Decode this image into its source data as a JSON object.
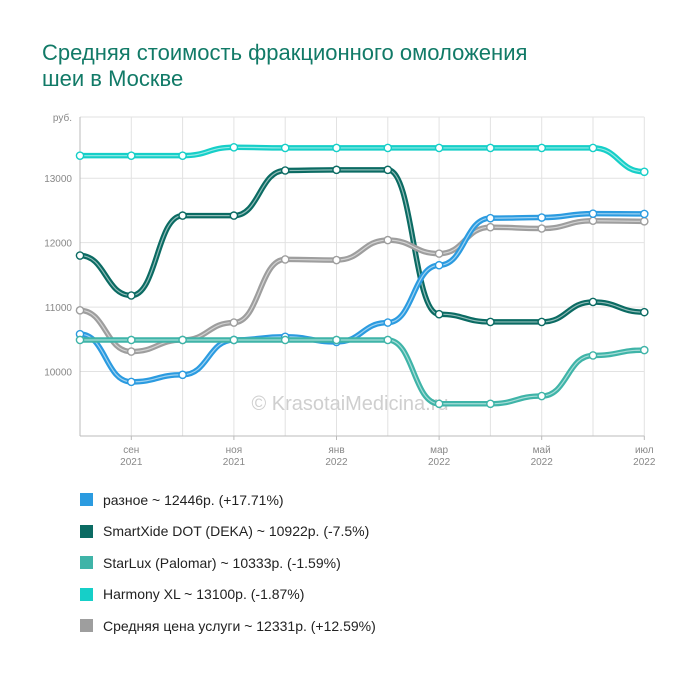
{
  "title_lines": [
    "Средняя стоимость фракционного омоложения",
    "шеи в Москве"
  ],
  "watermark": "© KrasotaiMedicina.ru",
  "colors": {
    "raznoe": "#2b9be0",
    "smartxide": "#0b6b63",
    "starlux": "#3fb4a8",
    "harmony": "#16cfc8",
    "avg": "#9e9e9e"
  },
  "legend": [
    {
      "label": "разное ~ 12446р. (+17.71%)",
      "color_key": "raznoe"
    },
    {
      "label": "SmartXide DOT (DEKA) ~ 10922р. (-7.5%)",
      "color_key": "smartxide"
    },
    {
      "label": "StarLux (Palomar) ~ 10333р. (-1.59%)",
      "color_key": "starlux"
    },
    {
      "label": "Harmony XL ~ 13100р. (-1.87%)",
      "color_key": "harmony"
    },
    {
      "label": "Средняя цена услуги ~ 12331р. (+12.59%)",
      "color_key": "avg"
    }
  ],
  "chart_data": {
    "type": "line",
    "y_unit": "руб.",
    "ylim": [
      9000,
      13950
    ],
    "yticks": [
      10000,
      11000,
      12000,
      13000
    ],
    "x_points": 12,
    "xticks": [
      {
        "index": 1,
        "month": "сен",
        "year": "2021"
      },
      {
        "index": 3,
        "month": "ноя",
        "year": "2021"
      },
      {
        "index": 5,
        "month": "янв",
        "year": "2022"
      },
      {
        "index": 7,
        "month": "мар",
        "year": "2022"
      },
      {
        "index": 9,
        "month": "май",
        "year": "2022"
      },
      {
        "index": 11,
        "month": "июл",
        "year": "2022"
      }
    ],
    "grid": true,
    "series": [
      {
        "name": "Harmony XL",
        "color_key": "harmony",
        "values": [
          13350,
          13350,
          13350,
          13480,
          13470,
          13470,
          13470,
          13470,
          13470,
          13470,
          13470,
          13100
        ]
      },
      {
        "name": "SmartXide DOT (DEKA)",
        "color_key": "smartxide",
        "values": [
          11800,
          11180,
          12420,
          12420,
          13120,
          13130,
          13130,
          10890,
          10770,
          10770,
          11080,
          10922
        ]
      },
      {
        "name": "Средняя цена услуги",
        "color_key": "avg",
        "values": [
          10950,
          10310,
          10490,
          10760,
          11740,
          11730,
          12040,
          11830,
          12240,
          12220,
          12340,
          12331
        ]
      },
      {
        "name": "разное",
        "color_key": "raznoe",
        "values": [
          10580,
          9840,
          9950,
          10490,
          10540,
          10460,
          10760,
          11650,
          12380,
          12390,
          12450,
          12446
        ]
      },
      {
        "name": "StarLux (Palomar)",
        "color_key": "starlux",
        "values": [
          10490,
          10490,
          10490,
          10490,
          10490,
          10490,
          10490,
          9500,
          9500,
          9620,
          10250,
          10333
        ]
      }
    ]
  }
}
